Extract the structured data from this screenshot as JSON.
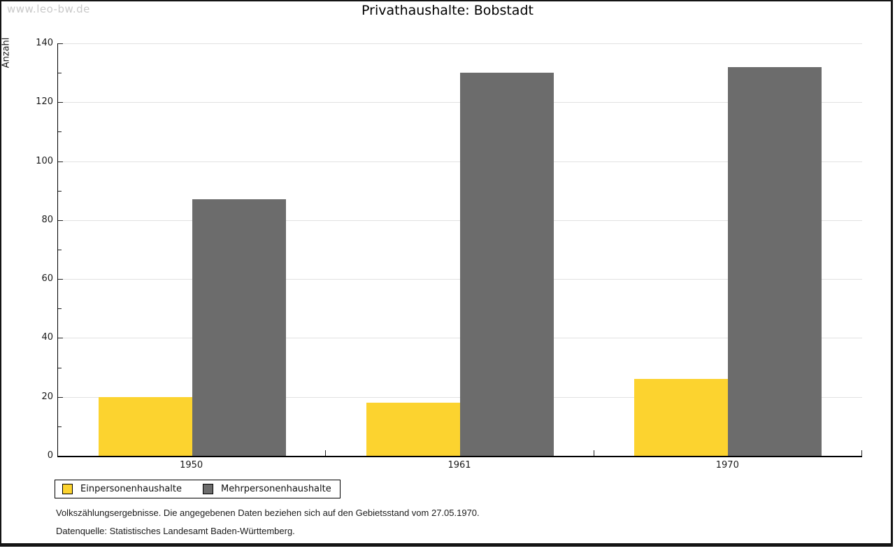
{
  "watermark": "www.leo-bw.de",
  "chart_data": {
    "type": "bar",
    "title": "Privathaushalte: Bobstadt",
    "categories": [
      "1950",
      "1961",
      "1970"
    ],
    "series": [
      {
        "name": "Einpersonenhaushalte",
        "color": "#FCD32F",
        "values": [
          20,
          18,
          26
        ]
      },
      {
        "name": "Mehrpersonenhaushalte",
        "color": "#6C6C6C",
        "values": [
          87,
          130,
          132
        ]
      }
    ],
    "xlabel": "",
    "ylabel": "Anzahl",
    "ylim": [
      0,
      140
    ],
    "yticks": [
      0,
      20,
      40,
      60,
      80,
      100,
      120,
      140
    ],
    "minor_tick_step": 10,
    "grid": true,
    "legend_position": "bottom-left"
  },
  "footnotes": [
    "Volkszählungsergebnisse. Die angegebenen Daten beziehen sich auf den Gebietsstand vom 27.05.1970.",
    "Datenquelle: Statistisches Landesamt Baden-Württemberg."
  ]
}
